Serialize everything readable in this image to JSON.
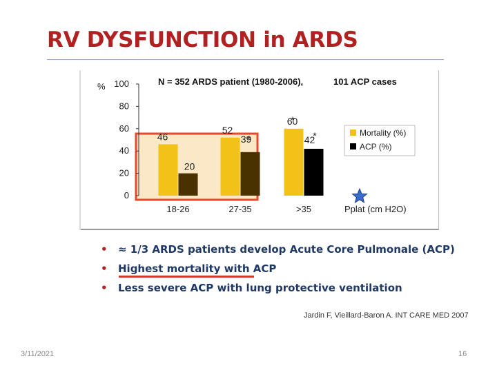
{
  "slide": {
    "title": "RV DYSFUNCTION in ARDS",
    "bullets": [
      "≈ 1/3 ARDS patients develop Acute Core Pulmonale (ACP)",
      "Highest mortality with ACP",
      "Less severe ACP with lung protective ventilation"
    ],
    "citation": "Jardin F, Vieillard-Baron A. INT CARE MED 2007",
    "date": "3/11/2021",
    "page_number": "16"
  },
  "colors": {
    "title": "#b02222",
    "mortality": "#f2c218",
    "acp_27_35": "#4a3200",
    "acp_gt35": "#000000",
    "highlight_fill": "#fbe8c6",
    "highlight_border": "#e8492b",
    "bullet_text": "#1f3864"
  },
  "chart_data": {
    "type": "bar",
    "title": "N = 352 ARDS patient (1980-2006),",
    "subtitle": "101 ACP cases",
    "ylabel": "%",
    "xlabel": "Pplat (cm H2O)",
    "ylim": [
      0,
      100
    ],
    "yticks": [
      0,
      20,
      40,
      60,
      80,
      100
    ],
    "categories": [
      "18-26",
      "27-35",
      ">35"
    ],
    "series": [
      {
        "name": "Mortality (%)",
        "values": [
          46,
          52,
          60
        ]
      },
      {
        "name": "ACP (%)",
        "values": [
          20,
          39,
          42
        ]
      }
    ],
    "data_labels": {
      "Mortality (%)": [
        "46",
        "52",
        "60"
      ],
      "ACP (%)": [
        "20",
        "39",
        "42"
      ]
    },
    "significance_markers": [
      {
        "category": "27-35",
        "series": "ACP (%)",
        "text": "*"
      },
      {
        "category": ">35",
        "series": "Mortality (%)",
        "text": "*"
      },
      {
        "category": ">35",
        "series": "ACP (%)",
        "text": "*"
      }
    ],
    "highlighted_categories": [
      "18-26",
      "27-35"
    ],
    "legend_position": "right",
    "grid": false
  }
}
